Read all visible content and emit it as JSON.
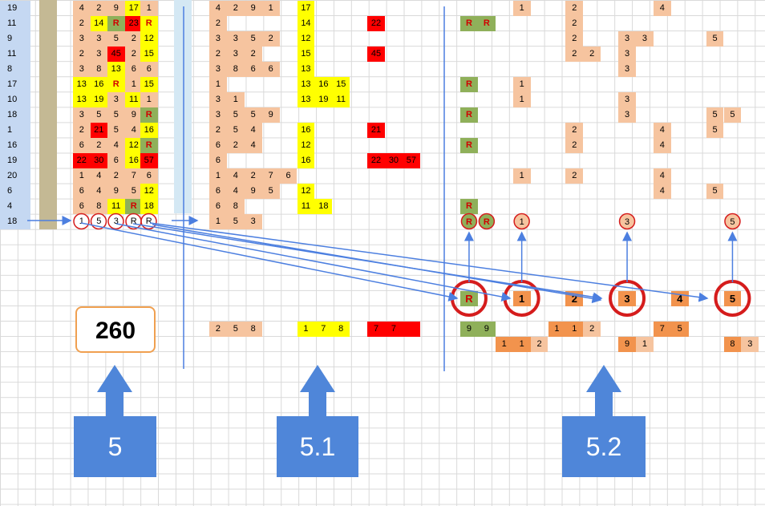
{
  "colors": {
    "peach": "#f6c49f",
    "yellow": "#ffff00",
    "red": "#ff0000",
    "green": "#8fb05a",
    "orange": "#f2934d",
    "rowno": "#c5d8f2",
    "khaki": "#c4b994",
    "lightblue": "#d4e8f4",
    "arrow": "#4c7fe0",
    "circle": "#d51c1c",
    "labelbox": "#4f86d9"
  },
  "row_numbers": [
    "19",
    "11",
    "9",
    "11",
    "8",
    "17",
    "10",
    "18",
    "1",
    "16",
    "19",
    "20",
    "6",
    "4",
    "18"
  ],
  "section5": {
    "rows": [
      [
        [
          "4",
          "p"
        ],
        [
          "2",
          "p"
        ],
        [
          "9",
          "p"
        ],
        [
          "17",
          "y"
        ],
        [
          "1",
          "p"
        ]
      ],
      [
        [
          "2",
          "p"
        ],
        [
          "14",
          "y"
        ],
        [
          "R",
          "g"
        ],
        [
          "23",
          "r"
        ],
        [
          "R",
          "y"
        ]
      ],
      [
        [
          "3",
          "p"
        ],
        [
          "3",
          "p"
        ],
        [
          "5",
          "p"
        ],
        [
          "2",
          "p"
        ],
        [
          "12",
          "y"
        ]
      ],
      [
        [
          "2",
          "p"
        ],
        [
          "3",
          "p"
        ],
        [
          "45",
          "r"
        ],
        [
          "2",
          "p"
        ],
        [
          "15",
          "y"
        ]
      ],
      [
        [
          "3",
          "p"
        ],
        [
          "8",
          "p"
        ],
        [
          "13",
          "y"
        ],
        [
          "6",
          "p"
        ],
        [
          "6",
          "p"
        ]
      ],
      [
        [
          "13",
          "y"
        ],
        [
          "16",
          "y"
        ],
        [
          "R",
          "y"
        ],
        [
          "1",
          "p"
        ],
        [
          "15",
          "y"
        ]
      ],
      [
        [
          "13",
          "y"
        ],
        [
          "19",
          "y"
        ],
        [
          "3",
          "p"
        ],
        [
          "11",
          "y"
        ],
        [
          "1",
          "p"
        ]
      ],
      [
        [
          "3",
          "p"
        ],
        [
          "5",
          "p"
        ],
        [
          "5",
          "p"
        ],
        [
          "9",
          "p"
        ],
        [
          "R",
          "g"
        ]
      ],
      [
        [
          "2",
          "p"
        ],
        [
          "21",
          "r"
        ],
        [
          "5",
          "p"
        ],
        [
          "4",
          "p"
        ],
        [
          "16",
          "y"
        ]
      ],
      [
        [
          "6",
          "p"
        ],
        [
          "2",
          "p"
        ],
        [
          "4",
          "p"
        ],
        [
          "12",
          "y"
        ],
        [
          "R",
          "g"
        ]
      ],
      [
        [
          "22",
          "r"
        ],
        [
          "30",
          "r"
        ],
        [
          "6",
          "p"
        ],
        [
          "16",
          "y"
        ],
        [
          "57",
          "r"
        ]
      ],
      [
        [
          "1",
          "p"
        ],
        [
          "4",
          "p"
        ],
        [
          "2",
          "p"
        ],
        [
          "7",
          "p"
        ],
        [
          "6",
          "p"
        ]
      ],
      [
        [
          "6",
          "p"
        ],
        [
          "4",
          "p"
        ],
        [
          "9",
          "p"
        ],
        [
          "5",
          "p"
        ],
        [
          "12",
          "y"
        ]
      ],
      [
        [
          "6",
          "p"
        ],
        [
          "8",
          "p"
        ],
        [
          "11",
          "y"
        ],
        [
          "R",
          "g"
        ],
        [
          "18",
          "y"
        ]
      ]
    ],
    "summary": [
      "1",
      "5",
      "3",
      "R",
      "R"
    ],
    "total": "260",
    "label": "5"
  },
  "section51": {
    "rows": [
      [
        [
          "4",
          "p"
        ],
        [
          "2",
          "p"
        ],
        [
          "9",
          "p"
        ],
        [
          "1",
          "p"
        ],
        null,
        [
          "17",
          "y"
        ],
        null,
        null,
        null,
        null,
        null
      ],
      [
        [
          "2",
          "p"
        ],
        null,
        null,
        null,
        null,
        [
          "14",
          "y"
        ],
        null,
        null,
        null,
        [
          "22",
          "r"
        ],
        null
      ],
      [
        [
          "3",
          "p"
        ],
        [
          "3",
          "p"
        ],
        [
          "5",
          "p"
        ],
        [
          "2",
          "p"
        ],
        null,
        [
          "12",
          "y"
        ],
        null,
        null,
        null,
        null,
        null
      ],
      [
        [
          "2",
          "p"
        ],
        [
          "3",
          "p"
        ],
        [
          "2",
          "p"
        ],
        null,
        null,
        [
          "15",
          "y"
        ],
        null,
        null,
        null,
        [
          "45",
          "r"
        ],
        null
      ],
      [
        [
          "3",
          "p"
        ],
        [
          "8",
          "p"
        ],
        [
          "6",
          "p"
        ],
        [
          "6",
          "p"
        ],
        null,
        [
          "13",
          "y"
        ],
        null,
        null,
        null,
        null,
        null
      ],
      [
        [
          "1",
          "p"
        ],
        null,
        null,
        null,
        null,
        [
          "13",
          "y"
        ],
        [
          "16",
          "y"
        ],
        [
          "15",
          "y"
        ],
        null,
        null,
        null
      ],
      [
        [
          "3",
          "p"
        ],
        [
          "1",
          "p"
        ],
        null,
        null,
        null,
        [
          "13",
          "y"
        ],
        [
          "19",
          "y"
        ],
        [
          "11",
          "y"
        ],
        null,
        null,
        null
      ],
      [
        [
          "3",
          "p"
        ],
        [
          "5",
          "p"
        ],
        [
          "5",
          "p"
        ],
        [
          "9",
          "p"
        ],
        null,
        null,
        null,
        null,
        null,
        null,
        null
      ],
      [
        [
          "2",
          "p"
        ],
        [
          "5",
          "p"
        ],
        [
          "4",
          "p"
        ],
        null,
        null,
        [
          "16",
          "y"
        ],
        null,
        null,
        null,
        [
          "21",
          "r"
        ],
        null
      ],
      [
        [
          "6",
          "p"
        ],
        [
          "2",
          "p"
        ],
        [
          "4",
          "p"
        ],
        null,
        null,
        [
          "12",
          "y"
        ],
        null,
        null,
        null,
        null,
        null
      ],
      [
        [
          "6",
          "p"
        ],
        null,
        null,
        null,
        null,
        [
          "16",
          "y"
        ],
        null,
        null,
        null,
        [
          "22",
          "r"
        ],
        [
          "30",
          "r"
        ],
        [
          "57",
          "r"
        ]
      ],
      [
        [
          "1",
          "p"
        ],
        [
          "4",
          "p"
        ],
        [
          "2",
          "p"
        ],
        [
          "7",
          "p"
        ],
        [
          "6",
          "p"
        ],
        null,
        null,
        null,
        null,
        null,
        null
      ],
      [
        [
          "6",
          "p"
        ],
        [
          "4",
          "p"
        ],
        [
          "9",
          "p"
        ],
        [
          "5",
          "p"
        ],
        null,
        [
          "12",
          "y"
        ],
        null,
        null,
        null,
        null,
        null
      ],
      [
        [
          "6",
          "p"
        ],
        [
          "8",
          "p"
        ],
        null,
        null,
        null,
        [
          "11",
          "y"
        ],
        [
          "18",
          "y"
        ],
        null,
        null,
        null,
        null
      ]
    ],
    "summary": [
      "1",
      "5",
      "3"
    ],
    "bottom": [
      {
        "col": 0,
        "v": "2",
        "c": "p"
      },
      {
        "col": 1,
        "v": "5",
        "c": "p"
      },
      {
        "col": 2,
        "v": "8",
        "c": "p"
      },
      {
        "col": 5,
        "v": "1",
        "c": "y"
      },
      {
        "col": 6,
        "v": "7",
        "c": "y"
      },
      {
        "col": 7,
        "v": "8",
        "c": "y"
      },
      {
        "col": 9,
        "v": "7",
        "c": "r"
      },
      {
        "col": 10,
        "v": "7",
        "c": "r"
      },
      {
        "col": 11,
        "v": "",
        "c": "r"
      }
    ],
    "label": "5.1"
  },
  "section52": {
    "rows": [
      [
        null,
        null,
        null,
        [
          "1",
          "p"
        ],
        null,
        null,
        [
          "2",
          "p"
        ],
        null,
        null,
        null,
        null,
        [
          "4",
          "p"
        ],
        null,
        null,
        null,
        null
      ],
      [
        [
          "R",
          "g"
        ],
        [
          "R",
          "g"
        ],
        null,
        null,
        null,
        null,
        [
          "2",
          "p"
        ],
        null,
        null,
        null,
        null,
        null,
        null,
        null,
        null,
        null
      ],
      [
        null,
        null,
        null,
        null,
        null,
        null,
        [
          "2",
          "p"
        ],
        null,
        null,
        [
          "3",
          "p"
        ],
        [
          "3",
          "p"
        ],
        null,
        null,
        null,
        [
          "5",
          "p"
        ],
        null
      ],
      [
        null,
        null,
        null,
        null,
        null,
        null,
        [
          "2",
          "p"
        ],
        [
          "2",
          "p"
        ],
        null,
        [
          "3",
          "p"
        ],
        null,
        null,
        null,
        null,
        null,
        null
      ],
      [
        null,
        null,
        null,
        null,
        null,
        null,
        null,
        null,
        null,
        [
          "3",
          "p"
        ],
        null,
        null,
        null,
        null,
        null,
        null
      ],
      [
        [
          "R",
          "g"
        ],
        null,
        null,
        [
          "1",
          "p"
        ],
        null,
        null,
        null,
        null,
        null,
        null,
        null,
        null,
        null,
        null,
        null,
        null
      ],
      [
        null,
        null,
        null,
        [
          "1",
          "p"
        ],
        null,
        null,
        null,
        null,
        null,
        [
          "3",
          "p"
        ],
        null,
        null,
        null,
        null,
        null,
        null
      ],
      [
        [
          "R",
          "g"
        ],
        null,
        null,
        null,
        null,
        null,
        null,
        null,
        null,
        [
          "3",
          "p"
        ],
        null,
        null,
        null,
        null,
        [
          "5",
          "p"
        ],
        [
          "5",
          "p"
        ]
      ],
      [
        null,
        null,
        null,
        null,
        null,
        null,
        [
          "2",
          "p"
        ],
        null,
        null,
        null,
        null,
        [
          "4",
          "p"
        ],
        null,
        null,
        [
          "5",
          "p"
        ],
        null
      ],
      [
        [
          "R",
          "g"
        ],
        null,
        null,
        null,
        null,
        null,
        [
          "2",
          "p"
        ],
        null,
        null,
        null,
        null,
        [
          "4",
          "p"
        ],
        null,
        null,
        null,
        null
      ],
      [
        null,
        null,
        null,
        null,
        null,
        null,
        null,
        null,
        null,
        null,
        null,
        null,
        null,
        null,
        null,
        null
      ],
      [
        null,
        null,
        null,
        [
          "1",
          "p"
        ],
        null,
        null,
        [
          "2",
          "p"
        ],
        null,
        null,
        null,
        null,
        [
          "4",
          "p"
        ],
        null,
        null,
        null,
        null
      ],
      [
        null,
        null,
        null,
        null,
        null,
        null,
        null,
        null,
        null,
        null,
        null,
        [
          "4",
          "p"
        ],
        null,
        null,
        [
          "5",
          "p"
        ],
        null
      ],
      [
        [
          "R",
          "g"
        ],
        null,
        null,
        null,
        null,
        null,
        null,
        null,
        null,
        null,
        null,
        null,
        null,
        null,
        null,
        null
      ]
    ],
    "summary": [
      {
        "col": 0,
        "v": "R"
      },
      {
        "col": 1,
        "v": "R"
      },
      {
        "col": 3,
        "v": "1"
      },
      {
        "col": 9,
        "v": "3"
      },
      {
        "col": 15,
        "v": "5"
      }
    ],
    "headers": [
      {
        "col": 0,
        "v": "R",
        "c": "g",
        "circled": true
      },
      {
        "col": 3,
        "v": "1",
        "c": "o",
        "circled": true
      },
      {
        "col": 6,
        "v": "2",
        "c": "o",
        "circled": false
      },
      {
        "col": 9,
        "v": "3",
        "c": "o",
        "circled": true
      },
      {
        "col": 12,
        "v": "4",
        "c": "o",
        "circled": false
      },
      {
        "col": 15,
        "v": "5",
        "c": "o",
        "circled": true
      }
    ],
    "bottom1": [
      {
        "col": 0,
        "v": "9",
        "c": "g"
      },
      {
        "col": 1,
        "v": "9",
        "c": "g"
      },
      {
        "col": 5,
        "v": "1",
        "c": "o"
      },
      {
        "col": 6,
        "v": "1",
        "c": "o"
      },
      {
        "col": 7,
        "v": "2",
        "c": "p"
      },
      {
        "col": 11,
        "v": "7",
        "c": "o"
      },
      {
        "col": 12,
        "v": "5",
        "c": "o"
      }
    ],
    "bottom2": [
      {
        "col": 2,
        "v": "1",
        "c": "o"
      },
      {
        "col": 3,
        "v": "1",
        "c": "o"
      },
      {
        "col": 4,
        "v": "2",
        "c": "p"
      },
      {
        "col": 9,
        "v": "9",
        "c": "o"
      },
      {
        "col": 10,
        "v": "1",
        "c": "p"
      },
      {
        "col": 15,
        "v": "8",
        "c": "o"
      },
      {
        "col": 16,
        "v": "3",
        "c": "p"
      }
    ],
    "label": "5.2"
  }
}
